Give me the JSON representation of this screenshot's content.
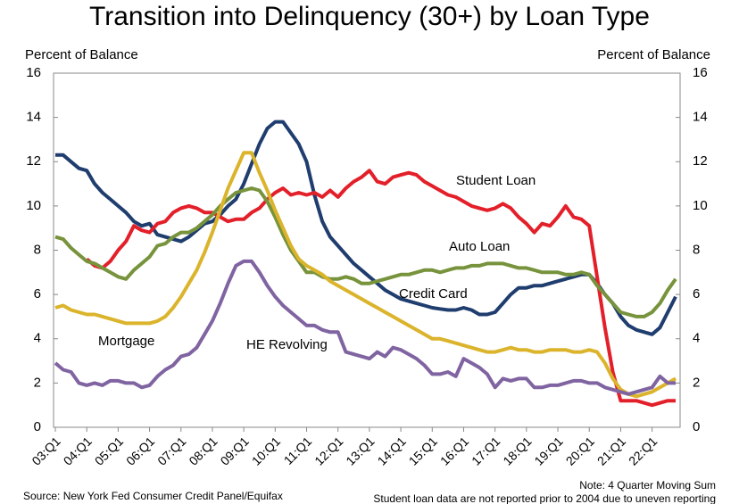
{
  "chart_data": {
    "type": "line",
    "title": "Transition into Delinquency (30+) by Loan Type",
    "y_label": "Percent of Balance",
    "y2_label": "Percent of Balance",
    "source": "Source: New York Fed Consumer Credit Panel/Equifax",
    "notes": [
      "Note: 4 Quarter Moving Sum",
      "Student loan data are not reported prior to 2004 due to uneven reporting"
    ],
    "grid": false,
    "ylim": [
      0,
      16
    ],
    "yticks": [
      0,
      2,
      4,
      6,
      8,
      10,
      12,
      14,
      16
    ],
    "y2lim": [
      0,
      16
    ],
    "y2ticks": [
      0,
      2,
      4,
      6,
      8,
      10,
      12,
      14,
      16
    ],
    "categories": [
      "03:Q1",
      null,
      null,
      null,
      "04:Q1",
      null,
      null,
      null,
      "05:Q1",
      null,
      null,
      null,
      "06:Q1",
      null,
      null,
      null,
      "07:Q1",
      null,
      null,
      null,
      "08:Q1",
      null,
      null,
      null,
      "09:Q1",
      null,
      null,
      null,
      "10:Q1",
      null,
      null,
      null,
      "11:Q1",
      null,
      null,
      null,
      "12:Q1",
      null,
      null,
      null,
      "13:Q1",
      null,
      null,
      null,
      "14:Q1",
      null,
      null,
      null,
      "15:Q1",
      null,
      null,
      null,
      "16:Q1",
      null,
      null,
      null,
      "17:Q1",
      null,
      null,
      null,
      "18:Q1",
      null,
      null,
      null,
      "19:Q1",
      null,
      null,
      null,
      "20:Q1",
      null,
      null,
      null,
      "21:Q1",
      null,
      null,
      null,
      "22:Q1",
      null,
      null,
      null
    ],
    "series": [
      {
        "name": "Credit Card",
        "color": "#1f3d6e",
        "values": [
          12.3,
          12.3,
          12.0,
          11.7,
          11.6,
          11.0,
          10.6,
          10.3,
          10.0,
          9.7,
          9.3,
          9.1,
          9.2,
          8.7,
          8.6,
          8.5,
          8.4,
          8.6,
          8.9,
          9.2,
          9.3,
          9.6,
          10.0,
          10.3,
          11.0,
          11.9,
          12.8,
          13.5,
          13.8,
          13.8,
          13.3,
          12.8,
          12.0,
          10.5,
          9.3,
          8.6,
          8.2,
          7.8,
          7.4,
          7.1,
          6.8,
          6.5,
          6.2,
          6.0,
          5.8,
          5.7,
          5.6,
          5.5,
          5.4,
          5.35,
          5.3,
          5.3,
          5.4,
          5.3,
          5.1,
          5.1,
          5.2,
          5.6,
          6.0,
          6.3,
          6.3,
          6.4,
          6.4,
          6.5,
          6.6,
          6.7,
          6.8,
          6.9,
          6.9,
          6.5,
          6.0,
          5.6,
          5.0,
          4.6,
          4.4,
          4.3,
          4.2,
          4.5,
          5.2,
          5.9
        ]
      },
      {
        "name": "Student Loan",
        "color": "#e3202a",
        "values": [
          null,
          null,
          null,
          null,
          7.6,
          7.3,
          7.2,
          7.5,
          8.0,
          8.4,
          9.1,
          8.9,
          8.8,
          9.2,
          9.3,
          9.7,
          9.9,
          10.0,
          9.9,
          9.7,
          9.7,
          9.5,
          9.3,
          9.4,
          9.4,
          9.7,
          9.9,
          10.3,
          10.6,
          10.8,
          10.5,
          10.6,
          10.5,
          10.6,
          10.4,
          10.7,
          10.4,
          10.8,
          11.1,
          11.3,
          11.6,
          11.1,
          11.0,
          11.3,
          11.4,
          11.5,
          11.4,
          11.1,
          10.9,
          10.7,
          10.5,
          10.4,
          10.2,
          10.0,
          9.9,
          9.8,
          9.9,
          10.1,
          9.9,
          9.5,
          9.2,
          8.8,
          9.2,
          9.1,
          9.5,
          10.0,
          9.5,
          9.4,
          9.1,
          6.8,
          4.5,
          2.5,
          1.2,
          1.2,
          1.2,
          1.1,
          1.0,
          1.1,
          1.2,
          1.2
        ]
      },
      {
        "name": "Auto Loan",
        "color": "#77933c",
        "values": [
          8.6,
          8.5,
          8.1,
          7.8,
          7.5,
          7.4,
          7.2,
          7.0,
          6.8,
          6.7,
          7.1,
          7.4,
          7.7,
          8.2,
          8.3,
          8.6,
          8.8,
          8.8,
          9.0,
          9.3,
          9.6,
          10.0,
          10.3,
          10.6,
          10.7,
          10.8,
          10.7,
          10.2,
          9.5,
          8.7,
          8.0,
          7.5,
          7.0,
          7.0,
          6.8,
          6.7,
          6.7,
          6.8,
          6.7,
          6.5,
          6.5,
          6.6,
          6.7,
          6.8,
          6.9,
          6.9,
          7.0,
          7.1,
          7.1,
          7.0,
          7.1,
          7.2,
          7.2,
          7.3,
          7.3,
          7.4,
          7.4,
          7.4,
          7.3,
          7.2,
          7.2,
          7.1,
          7.0,
          7.0,
          7.0,
          6.9,
          6.9,
          7.0,
          6.9,
          6.4,
          6.0,
          5.6,
          5.2,
          5.1,
          5.0,
          5.0,
          5.2,
          5.6,
          6.2,
          6.7
        ]
      },
      {
        "name": "Mortgage",
        "color": "#dbb42c",
        "values": [
          5.4,
          5.5,
          5.3,
          5.2,
          5.1,
          5.1,
          5.0,
          4.9,
          4.8,
          4.7,
          4.7,
          4.7,
          4.7,
          4.8,
          5.0,
          5.4,
          5.9,
          6.5,
          7.1,
          7.9,
          8.8,
          9.8,
          10.8,
          11.6,
          12.4,
          12.4,
          11.5,
          10.7,
          9.8,
          9.0,
          8.2,
          7.6,
          7.3,
          7.1,
          6.9,
          6.6,
          6.4,
          6.2,
          6.0,
          5.8,
          5.6,
          5.4,
          5.2,
          5.0,
          4.8,
          4.6,
          4.4,
          4.2,
          4.0,
          4.0,
          3.9,
          3.8,
          3.7,
          3.6,
          3.5,
          3.4,
          3.4,
          3.5,
          3.6,
          3.5,
          3.5,
          3.4,
          3.4,
          3.5,
          3.5,
          3.5,
          3.4,
          3.4,
          3.5,
          3.4,
          2.9,
          2.2,
          1.7,
          1.5,
          1.4,
          1.5,
          1.6,
          1.8,
          2.0,
          2.2
        ]
      },
      {
        "name": "HE Revolving",
        "color": "#8064a2",
        "values": [
          2.9,
          2.6,
          2.5,
          2.0,
          1.9,
          2.0,
          1.9,
          2.1,
          2.1,
          2.0,
          2.0,
          1.8,
          1.9,
          2.3,
          2.6,
          2.8,
          3.2,
          3.3,
          3.6,
          4.2,
          4.8,
          5.6,
          6.5,
          7.3,
          7.5,
          7.5,
          7.0,
          6.4,
          5.9,
          5.5,
          5.2,
          4.9,
          4.6,
          4.6,
          4.4,
          4.3,
          4.3,
          3.4,
          3.3,
          3.2,
          3.1,
          3.4,
          3.2,
          3.6,
          3.5,
          3.3,
          3.1,
          2.8,
          2.4,
          2.4,
          2.5,
          2.3,
          3.1,
          2.9,
          2.7,
          2.4,
          1.8,
          2.2,
          2.1,
          2.2,
          2.2,
          1.8,
          1.8,
          1.9,
          1.9,
          2.0,
          2.1,
          2.1,
          2.0,
          2.0,
          1.8,
          1.7,
          1.6,
          1.5,
          1.6,
          1.7,
          1.8,
          2.3,
          2.0,
          2.0
        ]
      }
    ]
  }
}
